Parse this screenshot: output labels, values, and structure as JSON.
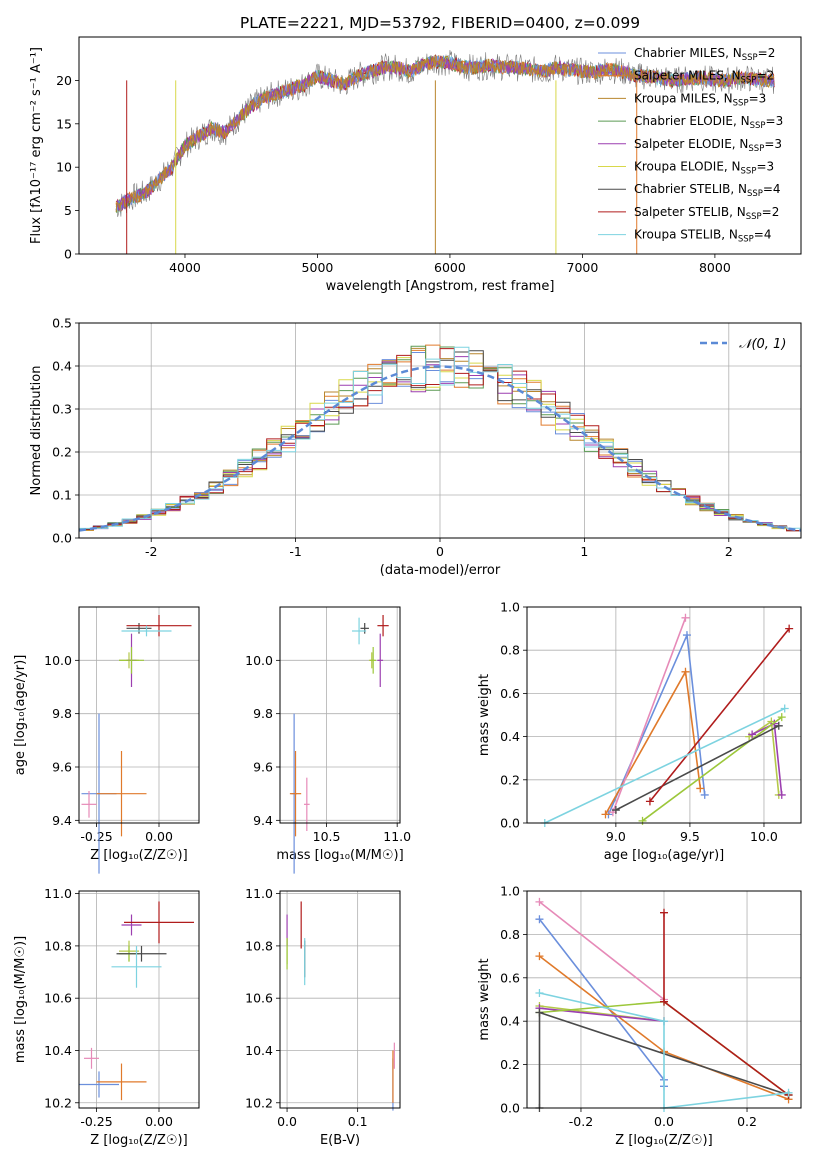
{
  "title": "PLATE=2221, MJD=53792, FIBERID=0400, z=0.099",
  "colors": [
    "#6b8fdc",
    "#e07a2b",
    "#b8862e",
    "#5b9a54",
    "#9c3fb0",
    "#d8d84a",
    "#4a4a4a",
    "#b01c1c",
    "#7dd3e0"
  ],
  "colors_bottom": [
    "#6b8fdc",
    "#e07a2b",
    "#e68ab8",
    "#b5c94a",
    "#9cc73a",
    "#4a4a4a",
    "#4a4a4a",
    "#b01c1c",
    "#7dd3e0"
  ],
  "chart_data": [
    {
      "id": "spectrum",
      "type": "line",
      "xlabel": "wavelength [Angstrom, rest frame]",
      "ylabel": "Flux [fλ10⁻¹⁷ erg cm⁻² s⁻¹ A⁻¹]",
      "xlim": [
        3200,
        8650
      ],
      "ylim": [
        0,
        25
      ],
      "xticks": [
        4000,
        5000,
        6000,
        7000,
        8000
      ],
      "yticks": [
        0,
        5,
        10,
        15,
        20
      ],
      "legend": [
        "Chabrier MILES, N_SSP=2",
        "Salpeter MILES, N_SSP=2",
        "Kroupa MILES, N_SSP=3",
        "Chabrier ELODIE, N_SSP=3",
        "Salpeter ELODIE, N_SSP=3",
        "Kroupa ELODIE, N_SSP=3",
        "Chabrier STELIB, N_SSP=4",
        "Salpeter STELIB, N_SSP=2",
        "Kroupa STELIB, N_SSP=4"
      ],
      "x": [
        3500,
        3600,
        3700,
        3800,
        3900,
        4000,
        4100,
        4200,
        4300,
        4400,
        4500,
        4600,
        4700,
        4800,
        4900,
        5000,
        5100,
        5200,
        5300,
        5400,
        5500,
        5600,
        5700,
        5800,
        5900,
        6000,
        6100,
        6200,
        6300,
        6400,
        6500,
        6600,
        6700,
        6800,
        6900,
        7000,
        7100,
        7200,
        7300,
        7400,
        7500,
        7600,
        7700,
        7800,
        7900,
        8000,
        8100,
        8200,
        8300,
        8400
      ],
      "y": [
        5.5,
        6.5,
        7.0,
        8.5,
        10.0,
        12.5,
        13.5,
        14.5,
        14.0,
        15.5,
        17.0,
        18.0,
        18.5,
        19.0,
        19.5,
        20.5,
        20.0,
        19.5,
        20.5,
        21.0,
        21.5,
        21.5,
        21.0,
        21.8,
        22.2,
        22.0,
        21.5,
        21.5,
        21.7,
        21.5,
        21.5,
        21.3,
        21.0,
        21.5,
        21.2,
        21.0,
        21.0,
        21.3,
        21.0,
        20.5,
        20.5,
        20.2,
        20.0,
        20.2,
        20.3,
        20.0,
        20.0,
        20.3,
        20.1,
        20.0
      ]
    },
    {
      "id": "residuals",
      "type": "area",
      "xlabel": "(data-model)/error",
      "ylabel": "Normed distribution",
      "xlim": [
        -2.5,
        2.5
      ],
      "ylim": [
        0,
        0.5
      ],
      "xticks": [
        -2,
        -1,
        0,
        1,
        2
      ],
      "yticks": [
        0.0,
        0.1,
        0.2,
        0.3,
        0.4,
        0.5
      ],
      "legend": [
        "𝒩(0, 1)"
      ]
    },
    {
      "id": "age_vs_Z",
      "type": "scatter",
      "xlabel": "Z [log₁₀(Z/Z☉)]",
      "ylabel": "age  [log₁₀(age/yr)]",
      "xlim": [
        -0.32,
        0.16
      ],
      "ylim": [
        9.39,
        10.2
      ],
      "xticks": [
        -0.25,
        0.0
      ],
      "yticks": [
        9.4,
        9.6,
        9.8,
        10.0
      ],
      "points": [
        [
          -0.24,
          9.5,
          0.07,
          0.3
        ],
        [
          -0.15,
          9.5,
          0.1,
          0.16
        ],
        [
          -0.28,
          9.46,
          0.03,
          0.05
        ],
        [
          -0.12,
          10.0,
          0.04,
          0.03
        ],
        [
          -0.11,
          10.0,
          0.02,
          0.1
        ],
        [
          -0.11,
          10.0,
          0.05,
          0.05
        ],
        [
          -0.08,
          10.12,
          0.05,
          0.02
        ],
        [
          0.0,
          10.13,
          0.13,
          0.04
        ],
        [
          -0.05,
          10.11,
          0.1,
          0.02
        ]
      ]
    },
    {
      "id": "age_vs_mass",
      "type": "scatter",
      "xlabel": "mass [log₁₀(M/M☉)]",
      "ylabel": "",
      "xlim": [
        10.17,
        11.02
      ],
      "ylim": [
        9.39,
        10.2
      ],
      "xticks": [
        10.5,
        11.0
      ],
      "yticks": [
        9.4,
        9.6,
        9.8,
        10.0
      ],
      "points": [
        [
          10.27,
          9.5,
          0.02,
          0.3
        ],
        [
          10.28,
          9.5,
          0.04,
          0.16
        ],
        [
          10.36,
          9.46,
          0.02,
          0.1
        ],
        [
          10.82,
          10.0,
          0.02,
          0.03
        ],
        [
          10.88,
          10.0,
          0.02,
          0.1
        ],
        [
          10.83,
          10.0,
          0.02,
          0.05
        ],
        [
          10.77,
          10.12,
          0.03,
          0.02
        ],
        [
          10.9,
          10.13,
          0.04,
          0.04
        ],
        [
          10.73,
          10.11,
          0.05,
          0.05
        ]
      ]
    },
    {
      "id": "weight_vs_age",
      "type": "line",
      "xlabel": "age  [log₁₀(age/yr)]",
      "ylabel": "mass weight",
      "xlim": [
        8.4,
        10.25
      ],
      "ylim": [
        0,
        1
      ],
      "xticks": [
        9.0,
        9.5,
        10.0
      ],
      "yticks": [
        0.0,
        0.2,
        0.4,
        0.6,
        0.8,
        1.0
      ],
      "series": [
        {
          "x": [
            8.95,
            9.48,
            9.6
          ],
          "y": [
            0.04,
            0.87,
            0.13
          ]
        },
        {
          "x": [
            8.93,
            9.47,
            9.57
          ],
          "y": [
            0.04,
            0.7,
            0.16
          ]
        },
        {
          "x": [
            8.98,
            9.47
          ],
          "y": [
            0.05,
            0.95
          ]
        },
        {
          "x": [
            9.9,
            10.05,
            10.1
          ],
          "y": [
            0.4,
            0.47,
            0.13
          ]
        },
        {
          "x": [
            9.92,
            10.07,
            10.12
          ],
          "y": [
            0.41,
            0.46,
            0.13
          ]
        },
        {
          "x": [
            9.18,
            10.12
          ],
          "y": [
            0.01,
            0.49
          ]
        },
        {
          "x": [
            9.0,
            10.1
          ],
          "y": [
            0.06,
            0.45
          ]
        },
        {
          "x": [
            9.23,
            10.17
          ],
          "y": [
            0.1,
            0.9
          ]
        },
        {
          "x": [
            8.52,
            10.14
          ],
          "y": [
            0.0,
            0.53
          ]
        }
      ]
    },
    {
      "id": "mass_vs_Z",
      "type": "scatter",
      "xlabel": "Z [log₁₀(Z/Z☉)]",
      "ylabel": "mass [log₁₀(M/M☉)]",
      "xlim": [
        -0.32,
        0.16
      ],
      "ylim": [
        10.18,
        11.01
      ],
      "xticks": [
        -0.25,
        0.0
      ],
      "yticks": [
        10.2,
        10.4,
        10.6,
        10.8,
        11.0
      ],
      "points": [
        [
          -0.24,
          10.27,
          0.08,
          0.05
        ],
        [
          -0.15,
          10.28,
          0.1,
          0.07
        ],
        [
          -0.27,
          10.37,
          0.03,
          0.04
        ],
        [
          -0.12,
          10.78,
          0.04,
          0.04
        ],
        [
          -0.11,
          10.88,
          0.04,
          0.04
        ],
        [
          -0.12,
          10.77,
          0.04,
          0.03
        ],
        [
          -0.07,
          10.77,
          0.1,
          0.03
        ],
        [
          0.0,
          10.89,
          0.14,
          0.08
        ],
        [
          -0.09,
          10.72,
          0.1,
          0.08
        ]
      ]
    },
    {
      "id": "mass_vs_ebv",
      "type": "scatter",
      "xlabel": "E(B-V)",
      "ylabel": "",
      "xlim": [
        -0.01,
        0.16
      ],
      "ylim": [
        10.18,
        11.01
      ],
      "xticks": [
        0.0,
        0.1
      ],
      "yticks": [
        10.2,
        10.4,
        10.6,
        10.8,
        11.0
      ],
      "points": [
        [
          0.15,
          10.27,
          0,
          0.1
        ],
        [
          0.15,
          10.3,
          0,
          0.1
        ],
        [
          0.152,
          10.38,
          0,
          0.05
        ],
        [
          0.0,
          10.78,
          0,
          0.05
        ],
        [
          0.0,
          10.86,
          0,
          0.06
        ],
        [
          0.0,
          10.77,
          0,
          0.06
        ],
        [
          0.025,
          10.75,
          0,
          0.07
        ],
        [
          0.02,
          10.88,
          0,
          0.09
        ],
        [
          0.025,
          10.74,
          0,
          0.09
        ]
      ]
    },
    {
      "id": "weight_vs_Z",
      "type": "line",
      "xlabel": "Z [log₁₀(Z/Z☉)]",
      "ylabel": "mass weight",
      "xlim": [
        -0.33,
        0.33
      ],
      "ylim": [
        0,
        1
      ],
      "xticks": [
        -0.2,
        0.0,
        0.2
      ],
      "yticks": [
        0.0,
        0.2,
        0.4,
        0.6,
        0.8,
        1.0
      ],
      "series": [
        {
          "x": [
            -0.3,
            0.0,
            0.0
          ],
          "y": [
            0.87,
            0.13,
            0.1
          ]
        },
        {
          "x": [
            -0.3,
            0.0,
            0.3
          ],
          "y": [
            0.7,
            0.26,
            0.04
          ]
        },
        {
          "x": [
            -0.3,
            0.0
          ],
          "y": [
            0.95,
            0.5
          ]
        },
        {
          "x": [
            -0.3,
            0.0
          ],
          "y": [
            0.47,
            0.4
          ]
        },
        {
          "x": [
            -0.3,
            0.0
          ],
          "y": [
            0.46,
            0.4
          ]
        },
        {
          "x": [
            -0.3,
            0.0,
            0.3
          ],
          "y": [
            0.44,
            0.49,
            0.06
          ]
        },
        {
          "x": [
            -0.3,
            -0.3,
            0.3
          ],
          "y": [
            0.0,
            0.44,
            0.06
          ]
        },
        {
          "x": [
            0.0,
            0.0,
            0.3
          ],
          "y": [
            0.9,
            0.49,
            0.06
          ]
        },
        {
          "x": [
            -0.3,
            0.0,
            0.0,
            0.3
          ],
          "y": [
            0.53,
            0.4,
            0.0,
            0.07
          ]
        }
      ]
    }
  ]
}
